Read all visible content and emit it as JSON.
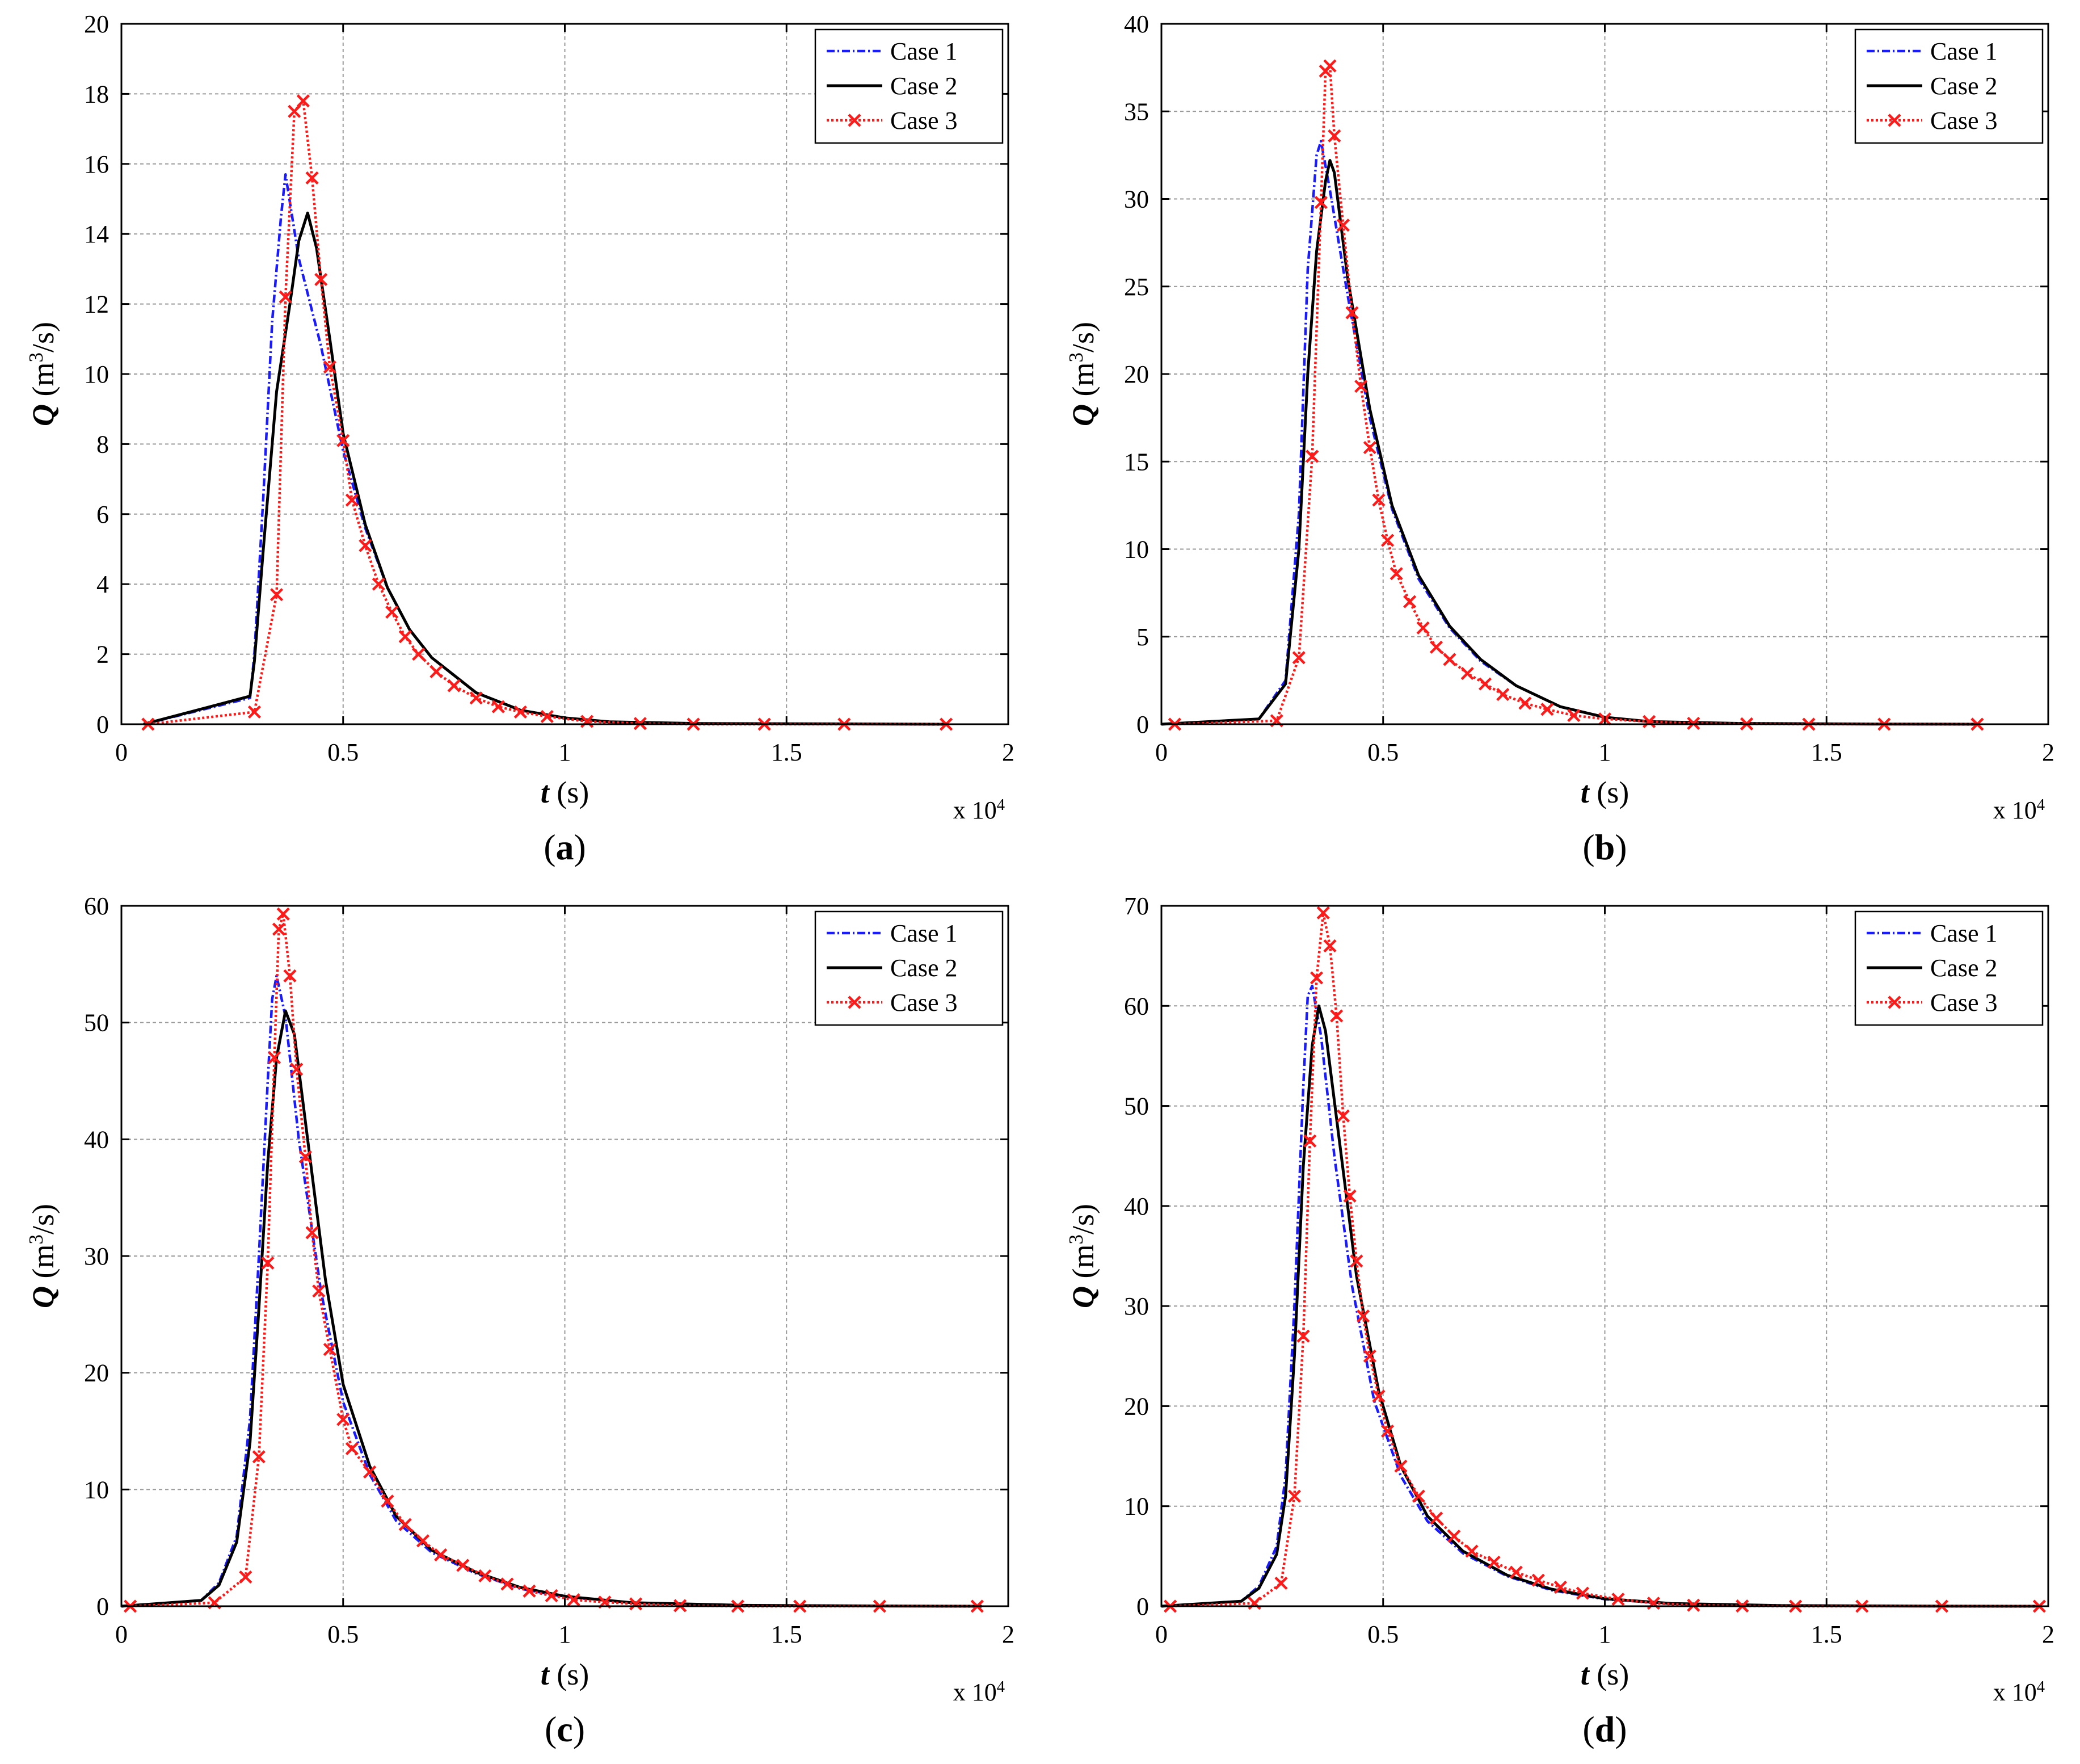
{
  "figure": {
    "legend_entries": [
      "Case 1",
      "Case 2",
      "Case 3"
    ],
    "x_multiplier": "x 10",
    "x_multiplier_exp": "4",
    "colors": {
      "case1": "#1a1aff",
      "case2": "#000000",
      "case3": "#ff1a1a",
      "grid": "#9a9a9a"
    }
  },
  "chart_data": [
    {
      "type": "line",
      "panel_label": "(a)",
      "xlabel": "t (s)",
      "ylabel": "Q (m3/s)",
      "x_scale_note": "x 10^4",
      "xlim": [
        0,
        2
      ],
      "ylim": [
        0,
        20
      ],
      "xticks": [
        "0",
        "0.5",
        "1",
        "1.5",
        "2"
      ],
      "yticks": [
        "0",
        "2",
        "4",
        "6",
        "8",
        "10",
        "12",
        "14",
        "16",
        "18",
        "20"
      ],
      "grid": true,
      "legend_position": "top-right",
      "series": [
        {
          "name": "Case 1",
          "marker": "none",
          "style": "dash-dot",
          "x": [
            0.05,
            0.29,
            0.3,
            0.32,
            0.34,
            0.36,
            0.37,
            0.4,
            0.45,
            0.5,
            0.55,
            0.6,
            0.65,
            0.7,
            0.8,
            0.9,
            1.0,
            1.1,
            1.3,
            1.6,
            1.86
          ],
          "y": [
            0,
            0.75,
            2.0,
            6.5,
            11.5,
            14.5,
            15.7,
            13.3,
            10.8,
            7.8,
            5.6,
            3.9,
            2.7,
            1.9,
            0.9,
            0.4,
            0.18,
            0.07,
            0.02,
            0.01,
            0
          ]
        },
        {
          "name": "Case 2",
          "marker": "none",
          "style": "solid",
          "x": [
            0.05,
            0.29,
            0.3,
            0.32,
            0.35,
            0.38,
            0.4,
            0.42,
            0.44,
            0.47,
            0.5,
            0.55,
            0.6,
            0.65,
            0.7,
            0.8,
            0.9,
            1.0,
            1.1,
            1.3,
            1.6,
            1.86
          ],
          "y": [
            0,
            0.8,
            1.8,
            5.0,
            9.5,
            12.0,
            13.8,
            14.6,
            13.6,
            11.0,
            8.3,
            5.7,
            3.9,
            2.7,
            1.9,
            0.9,
            0.4,
            0.18,
            0.07,
            0.02,
            0.01,
            0
          ]
        },
        {
          "name": "Case 3",
          "marker": "x",
          "style": "dotted",
          "x": [
            0.06,
            0.3,
            0.35,
            0.37,
            0.39,
            0.41,
            0.43,
            0.45,
            0.47,
            0.5,
            0.52,
            0.55,
            0.58,
            0.61,
            0.64,
            0.67,
            0.71,
            0.75,
            0.8,
            0.85,
            0.9,
            0.96,
            1.05,
            1.17,
            1.29,
            1.45,
            1.63,
            1.86
          ],
          "y": [
            0,
            0.35,
            3.7,
            12.2,
            17.5,
            17.8,
            15.6,
            12.7,
            10.2,
            8.1,
            6.4,
            5.1,
            4.0,
            3.2,
            2.5,
            2.0,
            1.5,
            1.1,
            0.75,
            0.5,
            0.35,
            0.22,
            0.08,
            0.02,
            0,
            0,
            0,
            0
          ]
        }
      ]
    },
    {
      "type": "line",
      "panel_label": "(b)",
      "xlabel": "t (s)",
      "ylabel": "Q (m3/s)",
      "x_scale_note": "x 10^4",
      "xlim": [
        0,
        2
      ],
      "ylim": [
        0,
        40
      ],
      "xticks": [
        "0",
        "0.5",
        "1",
        "1.5",
        "2"
      ],
      "yticks": [
        "0",
        "5",
        "10",
        "15",
        "20",
        "25",
        "30",
        "35",
        "40"
      ],
      "grid": true,
      "legend_position": "top-right",
      "series": [
        {
          "name": "Case 1",
          "marker": "none",
          "style": "dash-dot",
          "x": [
            0.0,
            0.22,
            0.28,
            0.31,
            0.33,
            0.35,
            0.36,
            0.38,
            0.42,
            0.47,
            0.52,
            0.58,
            0.65,
            0.72,
            0.8,
            0.9,
            1.0,
            1.1,
            1.3,
            1.6,
            1.84
          ],
          "y": [
            0,
            0.3,
            2.5,
            12.0,
            26.0,
            32.5,
            33.3,
            30.5,
            24.5,
            17.5,
            12.3,
            8.3,
            5.5,
            3.6,
            2.2,
            1.0,
            0.4,
            0.15,
            0.05,
            0.01,
            0
          ]
        },
        {
          "name": "Case 2",
          "marker": "none",
          "style": "solid",
          "x": [
            0.0,
            0.22,
            0.28,
            0.31,
            0.33,
            0.35,
            0.37,
            0.38,
            0.39,
            0.42,
            0.47,
            0.52,
            0.58,
            0.65,
            0.72,
            0.8,
            0.9,
            1.0,
            1.1,
            1.3,
            1.6,
            1.84
          ],
          "y": [
            0,
            0.3,
            2.3,
            10.0,
            20.0,
            27.0,
            31.0,
            32.2,
            31.5,
            25.5,
            18.0,
            12.5,
            8.5,
            5.6,
            3.7,
            2.2,
            1.0,
            0.4,
            0.15,
            0.05,
            0.01,
            0
          ]
        },
        {
          "name": "Case 3",
          "marker": "x",
          "style": "dotted",
          "x": [
            0.03,
            0.26,
            0.31,
            0.34,
            0.36,
            0.37,
            0.38,
            0.39,
            0.41,
            0.43,
            0.45,
            0.47,
            0.49,
            0.51,
            0.53,
            0.56,
            0.59,
            0.62,
            0.65,
            0.69,
            0.73,
            0.77,
            0.82,
            0.87,
            0.93,
            1.0,
            1.1,
            1.2,
            1.32,
            1.46,
            1.63,
            1.84
          ],
          "y": [
            0,
            0.2,
            3.8,
            15.3,
            29.8,
            37.3,
            37.6,
            33.6,
            28.5,
            23.5,
            19.3,
            15.8,
            12.8,
            10.5,
            8.6,
            7.0,
            5.5,
            4.4,
            3.7,
            2.9,
            2.3,
            1.7,
            1.2,
            0.85,
            0.5,
            0.3,
            0.15,
            0.05,
            0.02,
            0,
            0,
            0
          ]
        }
      ]
    },
    {
      "type": "line",
      "panel_label": "(c)",
      "xlabel": "t (s)",
      "ylabel": "Q (m3/s)",
      "x_scale_note": "x 10^4",
      "xlim": [
        0,
        2
      ],
      "ylim": [
        0,
        60
      ],
      "xticks": [
        "0",
        "0.5",
        "1",
        "1.5",
        "2"
      ],
      "yticks": [
        "0",
        "10",
        "20",
        "30",
        "40",
        "50",
        "60"
      ],
      "grid": true,
      "legend_position": "top-right",
      "series": [
        {
          "name": "Case 1",
          "marker": "none",
          "style": "dash-dot",
          "x": [
            0.0,
            0.18,
            0.22,
            0.26,
            0.29,
            0.31,
            0.33,
            0.34,
            0.35,
            0.37,
            0.4,
            0.45,
            0.5,
            0.56,
            0.62,
            0.7,
            0.8,
            0.9,
            1.0,
            1.15,
            1.4,
            1.7,
            1.94
          ],
          "y": [
            0,
            0.5,
            2.0,
            6.0,
            16.0,
            30.0,
            45.0,
            52.0,
            54.0,
            50.5,
            40.0,
            27.0,
            17.5,
            11.3,
            7.3,
            4.6,
            2.8,
            1.5,
            0.8,
            0.3,
            0.08,
            0.02,
            0
          ]
        },
        {
          "name": "Case 2",
          "marker": "none",
          "style": "solid",
          "x": [
            0.0,
            0.18,
            0.22,
            0.26,
            0.29,
            0.31,
            0.33,
            0.35,
            0.37,
            0.39,
            0.42,
            0.46,
            0.5,
            0.56,
            0.62,
            0.7,
            0.8,
            0.9,
            1.0,
            1.15,
            1.4,
            1.7,
            1.94
          ],
          "y": [
            0,
            0.5,
            1.8,
            5.5,
            14.0,
            25.5,
            38.0,
            47.0,
            51.0,
            49.0,
            40.0,
            28.0,
            19.0,
            12.0,
            7.7,
            4.8,
            2.9,
            1.6,
            0.85,
            0.3,
            0.08,
            0.02,
            0
          ]
        },
        {
          "name": "Case 3",
          "marker": "x",
          "style": "dotted",
          "x": [
            0.02,
            0.21,
            0.28,
            0.31,
            0.33,
            0.345,
            0.355,
            0.365,
            0.38,
            0.395,
            0.415,
            0.43,
            0.445,
            0.47,
            0.5,
            0.52,
            0.56,
            0.6,
            0.64,
            0.68,
            0.72,
            0.77,
            0.82,
            0.87,
            0.92,
            0.97,
            1.02,
            1.09,
            1.16,
            1.26,
            1.39,
            1.53,
            1.71,
            1.93
          ],
          "y": [
            0,
            0.3,
            2.5,
            12.8,
            29.4,
            47.0,
            58.0,
            59.3,
            54.0,
            46.0,
            38.5,
            32.0,
            27.0,
            22.0,
            16.0,
            13.5,
            11.5,
            9.0,
            7.0,
            5.6,
            4.4,
            3.5,
            2.6,
            1.9,
            1.3,
            0.9,
            0.55,
            0.35,
            0.2,
            0.05,
            0,
            0,
            0,
            0
          ]
        }
      ]
    },
    {
      "type": "line",
      "panel_label": "(d)",
      "xlabel": "t (s)",
      "ylabel": "Q (m3/s)",
      "x_scale_note": "x 10^4",
      "xlim": [
        0,
        2
      ],
      "ylim": [
        0,
        70
      ],
      "xticks": [
        "0",
        "0.5",
        "1",
        "1.5",
        "2"
      ],
      "yticks": [
        "0",
        "10",
        "20",
        "30",
        "40",
        "50",
        "60",
        "70"
      ],
      "grid": true,
      "legend_position": "top-right",
      "series": [
        {
          "name": "Case 1",
          "marker": "none",
          "style": "dash-dot",
          "x": [
            0.0,
            0.18,
            0.22,
            0.26,
            0.28,
            0.3,
            0.32,
            0.33,
            0.34,
            0.36,
            0.39,
            0.43,
            0.48,
            0.54,
            0.6,
            0.68,
            0.78,
            0.88,
            1.0,
            1.15,
            1.4,
            1.7,
            1.98
          ],
          "y": [
            0,
            0.5,
            2.0,
            6.0,
            13.0,
            30.0,
            52.0,
            61.0,
            62.0,
            57.0,
            45.0,
            32.0,
            20.5,
            13.0,
            8.5,
            5.3,
            3.0,
            1.6,
            0.7,
            0.25,
            0.06,
            0.01,
            0
          ]
        },
        {
          "name": "Case 2",
          "marker": "none",
          "style": "solid",
          "x": [
            0.0,
            0.18,
            0.22,
            0.26,
            0.28,
            0.3,
            0.32,
            0.34,
            0.355,
            0.37,
            0.4,
            0.44,
            0.49,
            0.54,
            0.6,
            0.68,
            0.78,
            0.88,
            1.0,
            1.15,
            1.4,
            1.7,
            1.98
          ],
          "y": [
            0,
            0.5,
            1.8,
            5.2,
            11.0,
            25.0,
            44.0,
            56.0,
            60.0,
            57.5,
            47.0,
            33.0,
            21.5,
            14.0,
            9.0,
            5.5,
            3.1,
            1.7,
            0.75,
            0.27,
            0.06,
            0.01,
            0
          ]
        },
        {
          "name": "Case 3",
          "marker": "x",
          "style": "dotted",
          "x": [
            0.02,
            0.21,
            0.27,
            0.3,
            0.32,
            0.335,
            0.35,
            0.365,
            0.38,
            0.395,
            0.41,
            0.425,
            0.44,
            0.455,
            0.47,
            0.49,
            0.51,
            0.54,
            0.58,
            0.62,
            0.66,
            0.7,
            0.75,
            0.8,
            0.85,
            0.9,
            0.95,
            1.03,
            1.11,
            1.2,
            1.31,
            1.43,
            1.58,
            1.76,
            1.98
          ],
          "y": [
            0,
            0.3,
            2.3,
            11.0,
            27.0,
            46.5,
            62.8,
            69.3,
            66.0,
            59.0,
            49.0,
            41.0,
            34.5,
            29.0,
            25.0,
            21.0,
            17.5,
            14.0,
            11.0,
            8.8,
            7.0,
            5.5,
            4.4,
            3.4,
            2.6,
            1.9,
            1.3,
            0.7,
            0.3,
            0.1,
            0.02,
            0,
            0,
            0,
            0
          ]
        }
      ]
    }
  ]
}
